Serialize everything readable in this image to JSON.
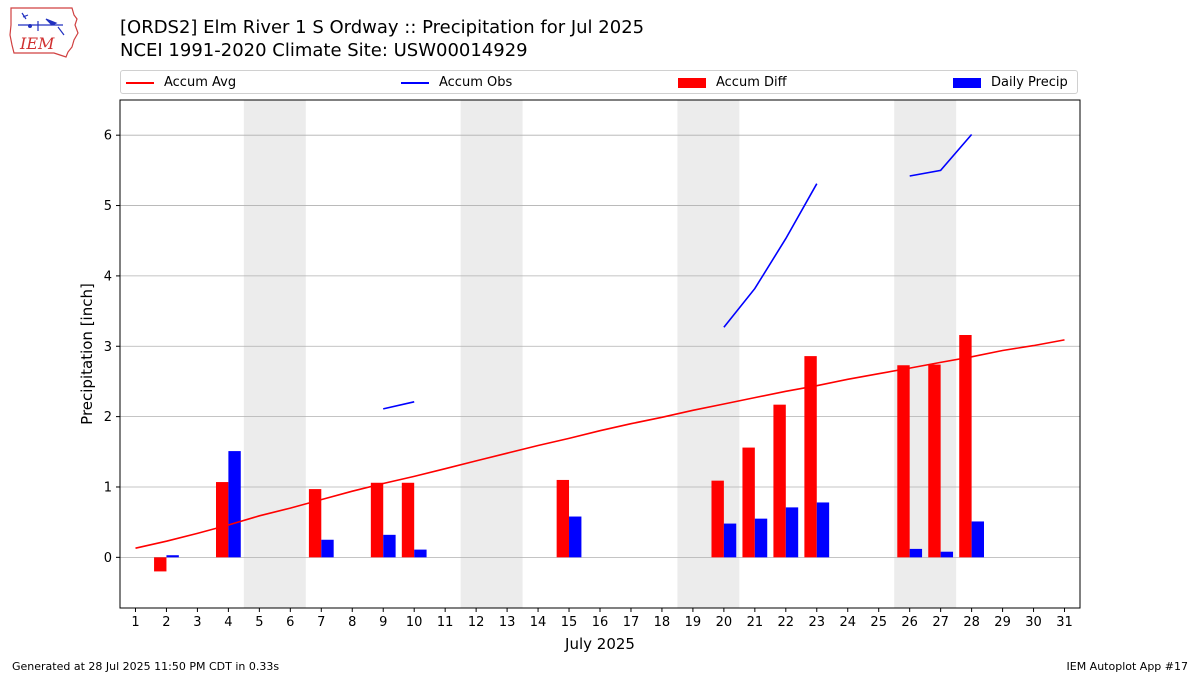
{
  "header": {
    "title_line1": "[ORDS2] Elm River 1 S Ordway :: Precipitation for Jul 2025",
    "title_line2": "NCEI 1991-2020 Climate Site: USW00014929",
    "logo_text": "IEM"
  },
  "footer": {
    "generated": "Generated at 28 Jul 2025 11:50 PM CDT in 0.33s",
    "app": "IEM Autoplot App #17"
  },
  "colors": {
    "avg": "#ff0000",
    "obs": "#0000ff",
    "diff": "#ff0000",
    "daily": "#0000ff",
    "weekend": "#ececec",
    "grid": "#b0b0b0"
  },
  "legend": [
    {
      "label": "Accum Avg",
      "kind": "line",
      "color": "#ff0000"
    },
    {
      "label": "Accum Obs",
      "kind": "line",
      "color": "#0000ff"
    },
    {
      "label": "Accum Diff",
      "kind": "box",
      "color": "#ff0000"
    },
    {
      "label": "Daily Precip",
      "kind": "box",
      "color": "#0000ff"
    }
  ],
  "chart_data": {
    "type": "bar",
    "xlabel": "July 2025",
    "ylabel": "Precipitation [inch]",
    "xlim": [
      0.5,
      31.5
    ],
    "ylim": [
      -0.72,
      6.5
    ],
    "yticks": [
      0,
      1,
      2,
      3,
      4,
      5,
      6
    ],
    "days": [
      1,
      2,
      3,
      4,
      5,
      6,
      7,
      8,
      9,
      10,
      11,
      12,
      13,
      14,
      15,
      16,
      17,
      18,
      19,
      20,
      21,
      22,
      23,
      24,
      25,
      26,
      27,
      28,
      29,
      30,
      31
    ],
    "weekend_bands": [
      [
        5,
        6
      ],
      [
        12,
        13
      ],
      [
        19,
        20
      ],
      [
        26,
        27
      ]
    ],
    "accum_avg": [
      {
        "x": 1,
        "y": 0.13
      },
      {
        "x": 2,
        "y": 0.23
      },
      {
        "x": 3,
        "y": 0.34
      },
      {
        "x": 4,
        "y": 0.46
      },
      {
        "x": 5,
        "y": 0.59
      },
      {
        "x": 6,
        "y": 0.7
      },
      {
        "x": 7,
        "y": 0.82
      },
      {
        "x": 8,
        "y": 0.94
      },
      {
        "x": 9,
        "y": 1.05
      },
      {
        "x": 10,
        "y": 1.15
      },
      {
        "x": 11,
        "y": 1.26
      },
      {
        "x": 12,
        "y": 1.37
      },
      {
        "x": 13,
        "y": 1.48
      },
      {
        "x": 14,
        "y": 1.59
      },
      {
        "x": 15,
        "y": 1.69
      },
      {
        "x": 16,
        "y": 1.8
      },
      {
        "x": 17,
        "y": 1.9
      },
      {
        "x": 18,
        "y": 1.99
      },
      {
        "x": 19,
        "y": 2.09
      },
      {
        "x": 20,
        "y": 2.18
      },
      {
        "x": 21,
        "y": 2.27
      },
      {
        "x": 22,
        "y": 2.36
      },
      {
        "x": 23,
        "y": 2.44
      },
      {
        "x": 24,
        "y": 2.53
      },
      {
        "x": 25,
        "y": 2.61
      },
      {
        "x": 26,
        "y": 2.69
      },
      {
        "x": 27,
        "y": 2.77
      },
      {
        "x": 28,
        "y": 2.85
      },
      {
        "x": 29,
        "y": 2.94
      },
      {
        "x": 30,
        "y": 3.01
      },
      {
        "x": 31,
        "y": 3.09
      }
    ],
    "accum_obs_segments": [
      [
        {
          "x": 9,
          "y": 2.11
        },
        {
          "x": 10,
          "y": 2.21
        }
      ],
      [
        {
          "x": 20,
          "y": 3.27
        },
        {
          "x": 21,
          "y": 3.82
        },
        {
          "x": 22,
          "y": 4.53
        },
        {
          "x": 23,
          "y": 5.31
        }
      ],
      [
        {
          "x": 26,
          "y": 5.42
        },
        {
          "x": 27,
          "y": 5.5
        },
        {
          "x": 28,
          "y": 6.01
        }
      ]
    ],
    "accum_diff": [
      {
        "x": 2,
        "y": -0.2
      },
      {
        "x": 4,
        "y": 1.07
      },
      {
        "x": 7,
        "y": 0.97
      },
      {
        "x": 9,
        "y": 1.06
      },
      {
        "x": 10,
        "y": 1.06
      },
      {
        "x": 15,
        "y": 1.1
      },
      {
        "x": 20,
        "y": 1.09
      },
      {
        "x": 21,
        "y": 1.56
      },
      {
        "x": 22,
        "y": 2.17
      },
      {
        "x": 23,
        "y": 2.86
      },
      {
        "x": 26,
        "y": 2.73
      },
      {
        "x": 27,
        "y": 2.74
      },
      {
        "x": 28,
        "y": 3.16
      }
    ],
    "daily_precip": [
      {
        "x": 2,
        "y": 0.03
      },
      {
        "x": 4,
        "y": 1.51
      },
      {
        "x": 7,
        "y": 0.25
      },
      {
        "x": 9,
        "y": 0.32
      },
      {
        "x": 10,
        "y": 0.11
      },
      {
        "x": 15,
        "y": 0.58
      },
      {
        "x": 20,
        "y": 0.48
      },
      {
        "x": 21,
        "y": 0.55
      },
      {
        "x": 22,
        "y": 0.71
      },
      {
        "x": 23,
        "y": 0.78
      },
      {
        "x": 26,
        "y": 0.12
      },
      {
        "x": 27,
        "y": 0.08
      },
      {
        "x": 28,
        "y": 0.51
      }
    ]
  }
}
